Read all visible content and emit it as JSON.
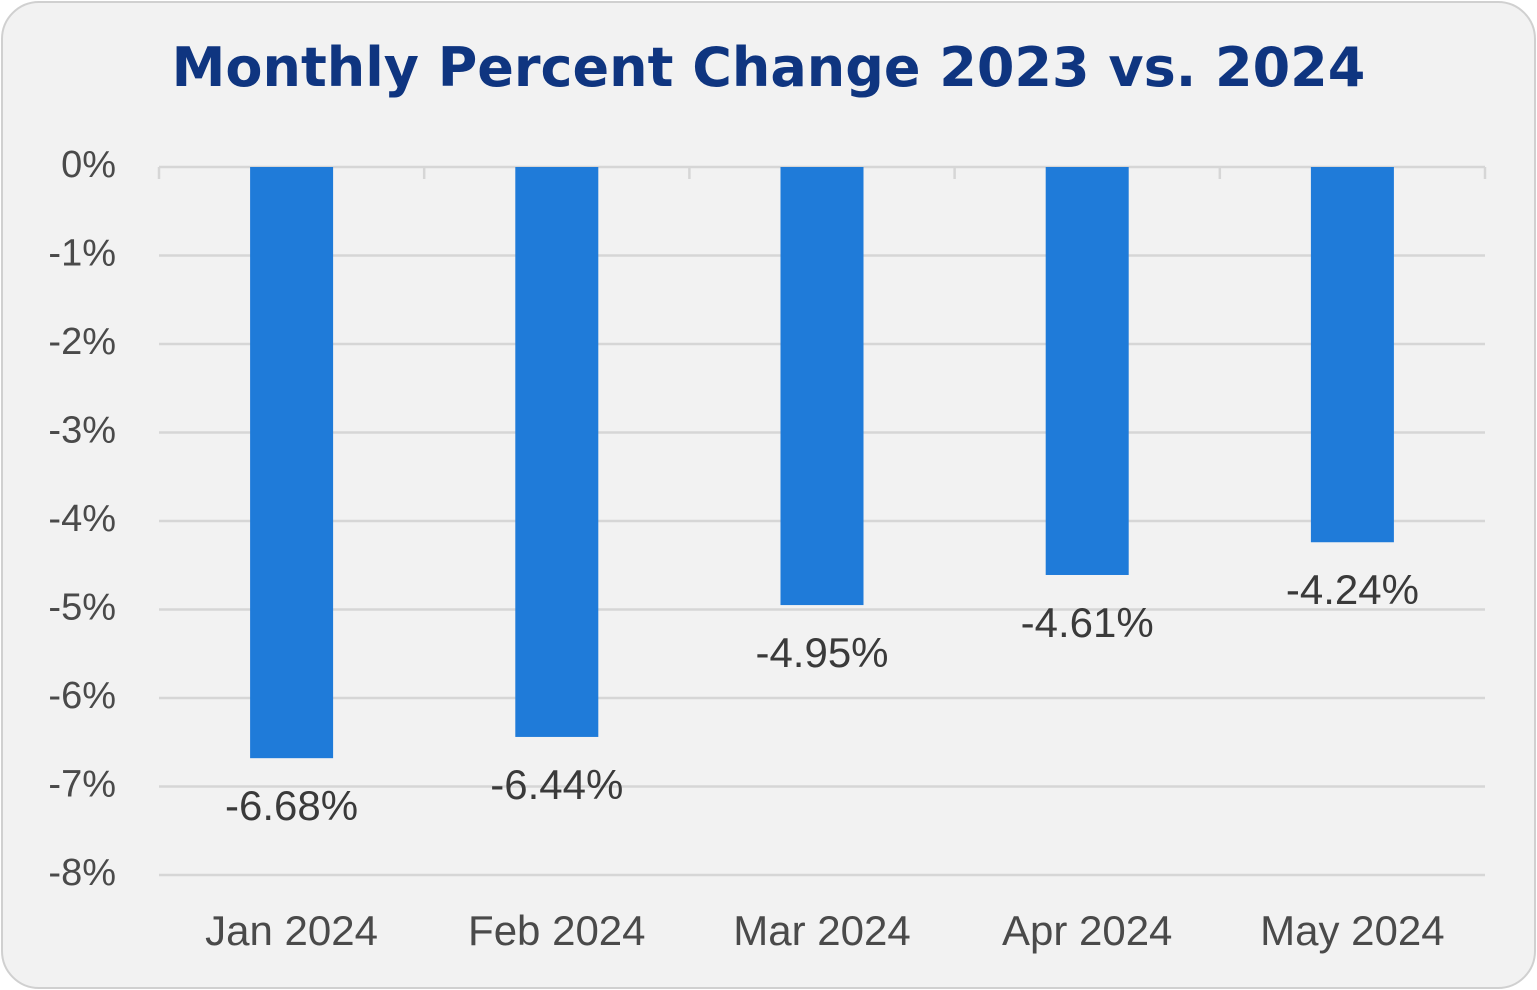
{
  "chart_data": {
    "type": "bar",
    "title": "Monthly Percent Change 2023 vs. 2024",
    "categories": [
      "Jan 2024",
      "Feb 2024",
      "Mar 2024",
      "Apr 2024",
      "May 2024"
    ],
    "values": [
      -6.68,
      -6.44,
      -4.95,
      -4.61,
      -4.24
    ],
    "data_labels": [
      "-6.68%",
      "-6.44%",
      "-4.95%",
      "-4.61%",
      "-4.24%"
    ],
    "ylim": [
      -8,
      0
    ],
    "yticks": [
      0,
      -1,
      -2,
      -3,
      -4,
      -5,
      -6,
      -7,
      -8
    ],
    "ytick_labels": [
      "0%",
      "-1%",
      "-2%",
      "-3%",
      "-4%",
      "-5%",
      "-6%",
      "-7%",
      "-8%"
    ],
    "xlabel": "",
    "ylabel": "",
    "grid": true,
    "legend": "none",
    "bar_color": "#1f7bd9",
    "title_color": "#0f3580",
    "background_color": "#f2f2f2"
  }
}
